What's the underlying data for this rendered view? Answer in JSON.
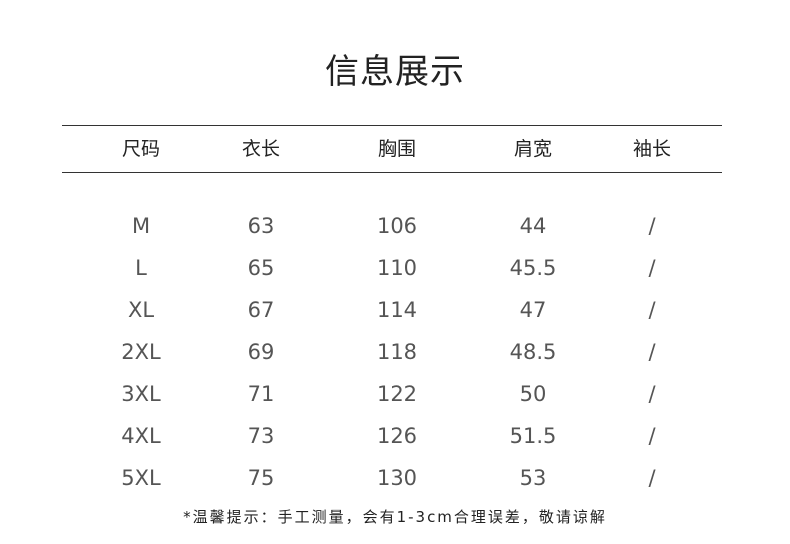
{
  "title": "信息展示",
  "headers": [
    "尺码",
    "衣长",
    "胸围",
    "肩宽",
    "袖长"
  ],
  "rows": [
    [
      "M",
      "63",
      "106",
      "44",
      "/"
    ],
    [
      "L",
      "65",
      "110",
      "45.5",
      "/"
    ],
    [
      "XL",
      "67",
      "114",
      "47",
      "/"
    ],
    [
      "2XL",
      "69",
      "118",
      "48.5",
      "/"
    ],
    [
      "3XL",
      "71",
      "122",
      "50",
      "/"
    ],
    [
      "4XL",
      "73",
      "126",
      "51.5",
      "/"
    ],
    [
      "5XL",
      "75",
      "130",
      "53",
      "/"
    ]
  ],
  "note": "*温馨提示：手工测量，会有1-3cm合理误差，敬请谅解"
}
